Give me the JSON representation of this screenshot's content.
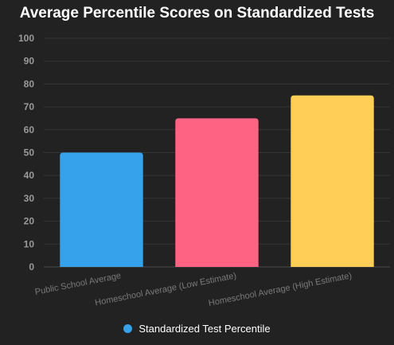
{
  "chart_data": {
    "type": "bar",
    "title": "Average Percentile Scores on Standardized Tests",
    "categories": [
      "Public School Average",
      "Homeschool Average (Low Estimate)",
      "Homeschool Average (High Estimate)"
    ],
    "series": [
      {
        "name": "Standardized Test Percentile",
        "values": [
          50,
          65,
          75
        ],
        "colors": [
          "#36A2EB",
          "#FF6384",
          "#FFCE56"
        ],
        "legend_color": "#36A2EB"
      }
    ],
    "yticks": [
      "0",
      "10",
      "20",
      "30",
      "40",
      "50",
      "60",
      "70",
      "80",
      "90",
      "100"
    ],
    "ylim": [
      0,
      100
    ],
    "grid": true,
    "legend_position": "bottom"
  }
}
